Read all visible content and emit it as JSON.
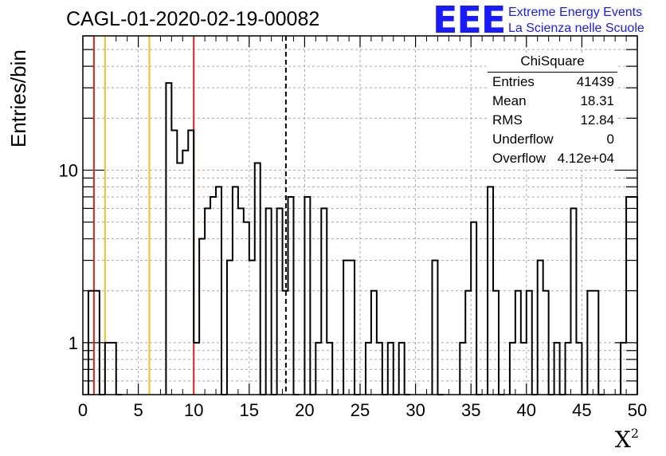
{
  "chart_data": {
    "type": "bar",
    "histtype": "step",
    "title": "CAGL-01-2020-02-19-00082",
    "xlabel": "X",
    "xlabel_superscript": "2",
    "ylabel": "Entries/bin",
    "yscale": "log",
    "xlim": [
      0,
      50
    ],
    "ylim": [
      0.5,
      60
    ],
    "bin_width": 0.5,
    "grid": true,
    "x_ticks": [
      "0",
      "5",
      "10",
      "15",
      "20",
      "25",
      "30",
      "35",
      "40",
      "45",
      "50"
    ],
    "y_ticks": [
      "1",
      "10"
    ],
    "bins": [
      [
        0.5,
        2
      ],
      [
        1.0,
        2
      ],
      [
        2.0,
        1
      ],
      [
        2.5,
        1
      ],
      [
        7.5,
        32
      ],
      [
        8.0,
        17
      ],
      [
        8.5,
        11
      ],
      [
        9.0,
        13
      ],
      [
        9.5,
        17
      ],
      [
        10.0,
        1
      ],
      [
        10.5,
        4
      ],
      [
        11.0,
        6
      ],
      [
        11.5,
        7
      ],
      [
        12.0,
        8
      ],
      [
        13.0,
        3
      ],
      [
        13.5,
        8
      ],
      [
        14.0,
        6
      ],
      [
        14.5,
        5
      ],
      [
        15.0,
        3
      ],
      [
        15.5,
        11
      ],
      [
        16.5,
        6
      ],
      [
        17.5,
        6
      ],
      [
        18.0,
        2
      ],
      [
        18.5,
        7
      ],
      [
        20.0,
        7
      ],
      [
        21.0,
        1
      ],
      [
        21.5,
        6
      ],
      [
        22.0,
        1
      ],
      [
        23.5,
        3
      ],
      [
        24.0,
        3
      ],
      [
        25.5,
        1
      ],
      [
        26.0,
        2
      ],
      [
        26.5,
        1
      ],
      [
        27.5,
        1
      ],
      [
        28.5,
        1
      ],
      [
        31.5,
        3
      ],
      [
        34.0,
        1
      ],
      [
        34.5,
        2
      ],
      [
        35.0,
        5
      ],
      [
        36.5,
        8
      ],
      [
        37.0,
        2
      ],
      [
        38.5,
        1
      ],
      [
        39.0,
        2
      ],
      [
        39.5,
        1
      ],
      [
        40.0,
        2
      ],
      [
        41.0,
        3
      ],
      [
        41.5,
        2
      ],
      [
        42.5,
        1
      ],
      [
        43.5,
        1
      ],
      [
        44.0,
        6
      ],
      [
        44.5,
        1
      ],
      [
        45.5,
        2
      ],
      [
        46.0,
        2
      ],
      [
        48.5,
        1
      ],
      [
        49.0,
        7
      ],
      [
        49.5,
        7
      ]
    ],
    "vertical_lines": [
      {
        "x": 1,
        "color": "#e8201c"
      },
      {
        "x": 2,
        "color": "#f5c024"
      },
      {
        "x": 6,
        "color": "#f5c024"
      },
      {
        "x": 10,
        "color": "#e8201c"
      },
      {
        "x": 18.31,
        "color": "#000000",
        "dashed": true
      }
    ],
    "stats": {
      "title": "ChiSquare",
      "rows": [
        {
          "label": "Entries",
          "value": "41439"
        },
        {
          "label": "Mean",
          "value": "18.31"
        },
        {
          "label": "RMS",
          "value": "12.84"
        },
        {
          "label": "Underflow",
          "value": "0"
        },
        {
          "label": "Overflow",
          "value": "4.12e+04"
        }
      ]
    }
  },
  "logo": {
    "mark": "EEE",
    "line1": "Extreme Energy Events",
    "line2": "La Scienza nelle Scuole",
    "color": "#1a1aff"
  }
}
